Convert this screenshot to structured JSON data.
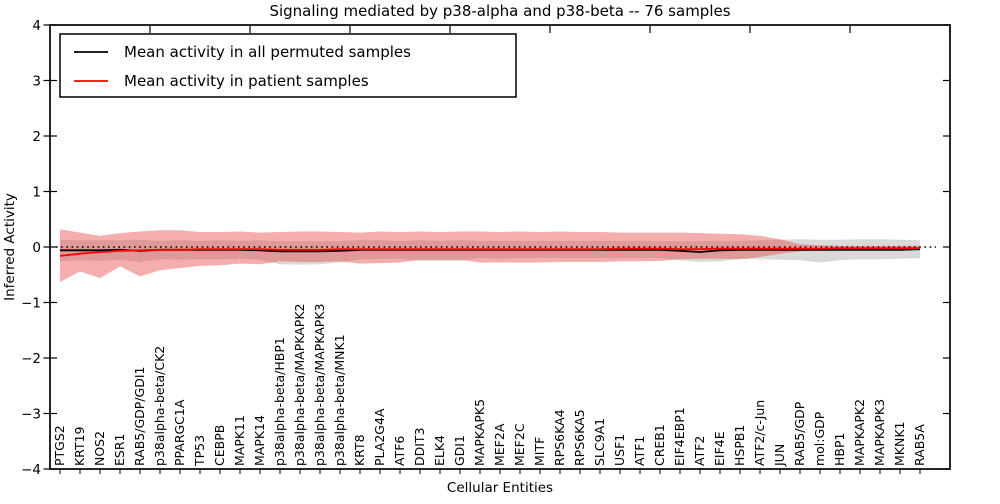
{
  "colors": {
    "permuted_line": "#000000",
    "patient_line": "#ff0000",
    "permuted_band": "#cccccc",
    "patient_band": "#e74c4c",
    "axis": "#000000",
    "background": "#ffffff"
  },
  "legend": {
    "position": "upper left",
    "entries": [
      {
        "label": "Mean activity in all permuted samples",
        "color": "#000000"
      },
      {
        "label": "Mean activity in patient samples",
        "color": "#ff0000"
      }
    ]
  },
  "chart_data": {
    "type": "line",
    "title": "Signaling mediated by p38-alpha and p38-beta -- 76 samples",
    "xlabel": "Cellular Entities",
    "ylabel": "Inferred Activity",
    "ylim": [
      -4,
      4
    ],
    "yticks": [
      4,
      3,
      2,
      1,
      0,
      -1,
      -2,
      -3,
      -4
    ],
    "grid": false,
    "reference_line": {
      "y": 0,
      "style": "dotted",
      "color": "#000000"
    },
    "legend_position": "upper left",
    "categories": [
      "PTGS2",
      "KRT19",
      "NOS2",
      "ESR1",
      "RAB5/GDP/GDI1",
      "p38alpha-beta/CK2",
      "PPARGC1A",
      "TP53",
      "CEBPB",
      "MAPK11",
      "MAPK14",
      "p38alpha-beta/HBP1",
      "p38alpha-beta/MAPKAPK2",
      "p38alpha-beta/MAPKAPK3",
      "p38alpha-beta/MNK1",
      "KRT8",
      "PLA2G4A",
      "ATF6",
      "DDIT3",
      "ELK4",
      "GDI1",
      "MAPKAPK5",
      "MEF2A",
      "MEF2C",
      "MITF",
      "RPS6KA4",
      "RPS6KA5",
      "SLC9A1",
      "USF1",
      "ATF1",
      "CREB1",
      "EIF4EBP1",
      "ATF2",
      "EIF4E",
      "HSPB1",
      "ATF2/c-Jun",
      "JUN",
      "RAB5/GDP",
      "mol:GDP",
      "HBP1",
      "MAPKAPK2",
      "MAPKAPK3",
      "MKNK1",
      "RAB5A"
    ],
    "series": [
      {
        "name": "Mean activity in all permuted samples",
        "color": "#000000",
        "band_color": "#cccccc",
        "band_opacity": 0.75,
        "values": [
          -0.06,
          -0.06,
          -0.06,
          -0.05,
          -0.07,
          -0.05,
          -0.05,
          -0.05,
          -0.05,
          -0.05,
          -0.06,
          -0.08,
          -0.08,
          -0.08,
          -0.07,
          -0.05,
          -0.05,
          -0.05,
          -0.05,
          -0.05,
          -0.05,
          -0.05,
          -0.05,
          -0.05,
          -0.05,
          -0.05,
          -0.05,
          -0.05,
          -0.05,
          -0.05,
          -0.05,
          -0.07,
          -0.09,
          -0.06,
          -0.05,
          -0.05,
          -0.05,
          -0.05,
          -0.05,
          -0.05,
          -0.05,
          -0.05,
          -0.05,
          -0.04
        ],
        "band_upper": [
          0.13,
          0.12,
          0.12,
          0.12,
          0.13,
          0.11,
          0.12,
          0.11,
          0.12,
          0.11,
          0.12,
          0.1,
          0.1,
          0.1,
          0.11,
          0.12,
          0.12,
          0.11,
          0.12,
          0.11,
          0.12,
          0.11,
          0.11,
          0.11,
          0.11,
          0.11,
          0.11,
          0.11,
          0.11,
          0.11,
          0.11,
          0.1,
          0.1,
          0.11,
          0.11,
          0.12,
          0.13,
          0.14,
          0.13,
          0.13,
          0.14,
          0.14,
          0.13,
          0.12
        ],
        "band_lower": [
          -0.26,
          -0.24,
          -0.25,
          -0.23,
          -0.27,
          -0.22,
          -0.23,
          -0.22,
          -0.22,
          -0.21,
          -0.23,
          -0.31,
          -0.32,
          -0.31,
          -0.28,
          -0.22,
          -0.21,
          -0.21,
          -0.25,
          -0.25,
          -0.25,
          -0.2,
          -0.21,
          -0.2,
          -0.2,
          -0.2,
          -0.2,
          -0.2,
          -0.2,
          -0.2,
          -0.2,
          -0.24,
          -0.27,
          -0.26,
          -0.21,
          -0.22,
          -0.23,
          -0.24,
          -0.28,
          -0.24,
          -0.22,
          -0.22,
          -0.21,
          -0.2
        ]
      },
      {
        "name": "Mean activity in patient samples",
        "color": "#ff0000",
        "band_color": "#e74c4c",
        "band_opacity": 0.45,
        "values": [
          -0.16,
          -0.12,
          -0.09,
          -0.07,
          -0.06,
          -0.05,
          -0.05,
          -0.04,
          -0.04,
          -0.04,
          -0.04,
          -0.05,
          -0.05,
          -0.05,
          -0.04,
          -0.04,
          -0.04,
          -0.04,
          -0.04,
          -0.04,
          -0.04,
          -0.04,
          -0.04,
          -0.04,
          -0.04,
          -0.04,
          -0.04,
          -0.04,
          -0.03,
          -0.03,
          -0.03,
          -0.04,
          -0.04,
          -0.03,
          -0.03,
          -0.03,
          -0.03,
          -0.03,
          -0.03,
          -0.02,
          -0.02,
          -0.02,
          -0.02,
          -0.02
        ],
        "band_upper": [
          0.32,
          0.26,
          0.2,
          0.25,
          0.28,
          0.3,
          0.3,
          0.27,
          0.27,
          0.28,
          0.26,
          0.27,
          0.28,
          0.28,
          0.27,
          0.26,
          0.28,
          0.27,
          0.28,
          0.27,
          0.28,
          0.28,
          0.27,
          0.28,
          0.27,
          0.28,
          0.27,
          0.27,
          0.26,
          0.26,
          0.26,
          0.26,
          0.25,
          0.24,
          0.23,
          0.2,
          0.14,
          0.05,
          0.03,
          0.02,
          0.02,
          0.02,
          0.02,
          0.02
        ],
        "band_lower": [
          -0.63,
          -0.44,
          -0.56,
          -0.35,
          -0.53,
          -0.42,
          -0.38,
          -0.34,
          -0.33,
          -0.3,
          -0.31,
          -0.26,
          -0.27,
          -0.27,
          -0.26,
          -0.3,
          -0.29,
          -0.28,
          -0.23,
          -0.23,
          -0.23,
          -0.28,
          -0.28,
          -0.28,
          -0.28,
          -0.27,
          -0.27,
          -0.27,
          -0.26,
          -0.26,
          -0.25,
          -0.22,
          -0.21,
          -0.21,
          -0.22,
          -0.18,
          -0.12,
          -0.08,
          -0.06,
          -0.05,
          -0.05,
          -0.05,
          -0.04,
          -0.04
        ]
      }
    ]
  }
}
